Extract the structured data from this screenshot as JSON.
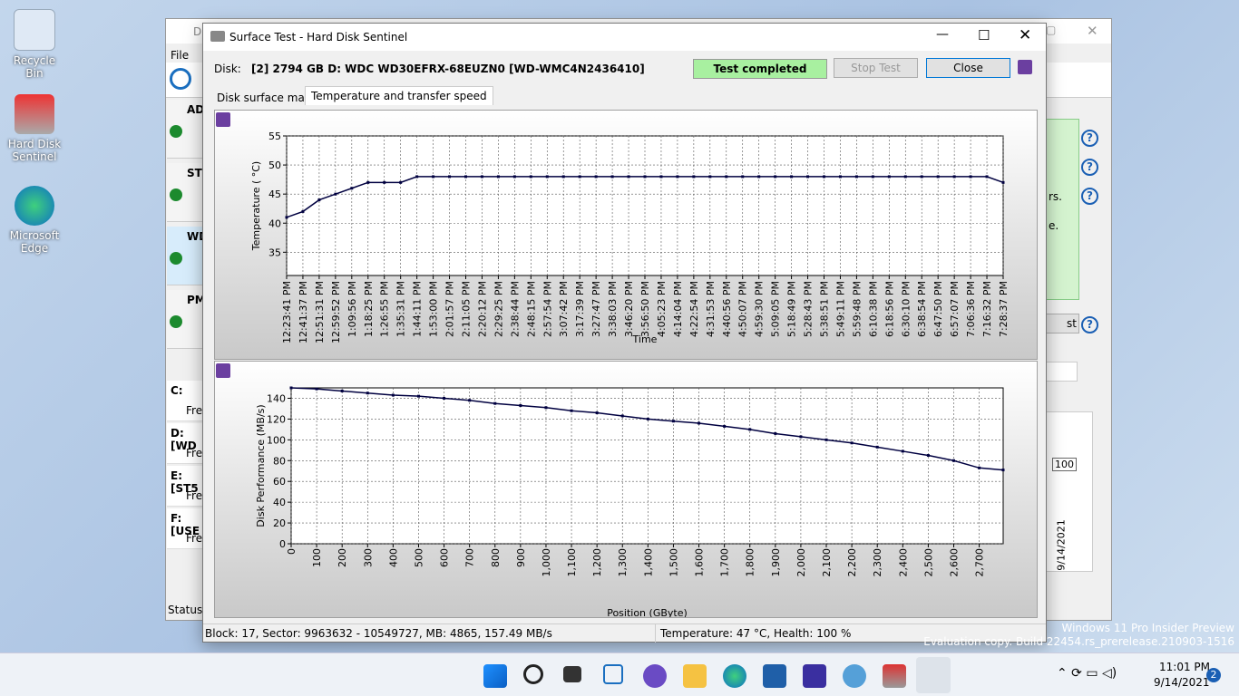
{
  "desktop": {
    "icons": [
      "Recycle Bin",
      "Hard Disk Sentinel",
      "Microsoft Edge"
    ]
  },
  "main_window": {
    "title": "Di",
    "menu": "File",
    "devices": [
      "AD",
      "ST",
      "WD",
      "PM"
    ],
    "volumes": [
      "C:",
      "D: [WD",
      "E: [ST5",
      "F: [USE"
    ],
    "free": "Fre",
    "status": "Status I",
    "right_texts": [
      "rs.",
      "e."
    ],
    "button": "st",
    "help": "?",
    "graph_value": "100",
    "graph_date": "9/14/2021"
  },
  "dialog": {
    "title": "Surface Test - Hard Disk Sentinel",
    "disk_label": "Disk:",
    "disk": "[2] 2794 GB D: WDC WD30EFRX-68EUZN0 [WD-WMC4N2436410]",
    "status": "Test completed",
    "buttons": [
      "Stop Test",
      "Close"
    ],
    "tabs": [
      "Disk surface map",
      "Temperature and transfer speed"
    ],
    "statusbar": [
      "Block: 17, Sector: 9963632 - 10549727, MB: 4865, 157.49 MB/s",
      "Temperature: 47  °C,  Health: 100 %"
    ]
  },
  "chart_data": [
    {
      "type": "line",
      "y_label": "Temperature ( °C)",
      "x_label": "Time",
      "categories": [
        "12:23:41 PM",
        "12:41:37 PM",
        "12:51:31 PM",
        "12:59:52 PM",
        "1:09:56 PM",
        "1:18:25 PM",
        "1:26:55 PM",
        "1:35:31 PM",
        "1:44:11 PM",
        "1:53:00 PM",
        "2:01:57 PM",
        "2:11:05 PM",
        "2:20:12 PM",
        "2:29:25 PM",
        "2:38:44 PM",
        "2:48:15 PM",
        "2:57:54 PM",
        "3:07:42 PM",
        "3:17:39 PM",
        "3:27:47 PM",
        "3:38:03 PM",
        "3:46:20 PM",
        "3:56:50 PM",
        "4:05:23 PM",
        "4:14:04 PM",
        "4:22:54 PM",
        "4:31:53 PM",
        "4:40:56 PM",
        "4:50:07 PM",
        "4:59:30 PM",
        "5:09:05 PM",
        "5:18:49 PM",
        "5:28:43 PM",
        "5:38:51 PM",
        "5:49:11 PM",
        "5:59:48 PM",
        "6:10:38 PM",
        "6:18:56 PM",
        "6:30:10 PM",
        "6:38:54 PM",
        "6:47:50 PM",
        "6:57:07 PM",
        "7:06:36 PM",
        "7:16:32 PM",
        "7:28:37 PM"
      ],
      "values": [
        41,
        42,
        44,
        45,
        46,
        47,
        47,
        47,
        48,
        48,
        48,
        48,
        48,
        48,
        48,
        48,
        48,
        48,
        48,
        48,
        48,
        48,
        48,
        48,
        48,
        48,
        48,
        48,
        48,
        48,
        48,
        48,
        48,
        48,
        48,
        48,
        48,
        48,
        48,
        48,
        48,
        48,
        48,
        48,
        47
      ],
      "color": "#000040",
      "ylim": [
        31,
        55
      ],
      "yticks": [
        35,
        40,
        45,
        50,
        55
      ],
      "grid": true
    },
    {
      "type": "line",
      "y_label": "Disk Performance (MB/s)",
      "x_label": "Position (GByte)",
      "x": [
        0,
        100,
        200,
        300,
        400,
        500,
        600,
        700,
        800,
        900,
        1000,
        1100,
        1200,
        1300,
        1400,
        1500,
        1600,
        1700,
        1800,
        1900,
        2000,
        2100,
        2200,
        2300,
        2400,
        2500,
        2600,
        2700,
        2794
      ],
      "values": [
        150,
        149,
        147,
        145,
        143,
        142,
        140,
        138,
        135,
        133,
        131,
        128,
        126,
        123,
        120,
        118,
        116,
        113,
        110,
        106,
        103,
        100,
        97,
        93,
        89,
        85,
        80,
        73,
        71
      ],
      "color": "#000040",
      "xlim": [
        0,
        2794
      ],
      "xticks": [
        0,
        100,
        200,
        300,
        400,
        500,
        600,
        700,
        800,
        900,
        {
          "value": 1000,
          "label": "1,000"
        },
        {
          "value": 1100,
          "label": "1,100"
        },
        {
          "value": 1200,
          "label": "1,200"
        },
        {
          "value": 1300,
          "label": "1,300"
        },
        {
          "value": 1400,
          "label": "1,400"
        },
        {
          "value": 1500,
          "label": "1,500"
        },
        {
          "value": 1600,
          "label": "1,600"
        },
        {
          "value": 1700,
          "label": "1,700"
        },
        {
          "value": 1800,
          "label": "1,800"
        },
        {
          "value": 1900,
          "label": "1,900"
        },
        {
          "value": 2000,
          "label": "2,000"
        },
        {
          "value": 2100,
          "label": "2,100"
        },
        {
          "value": 2200,
          "label": "2,200"
        },
        {
          "value": 2300,
          "label": "2,300"
        },
        {
          "value": 2400,
          "label": "2,400"
        },
        {
          "value": 2500,
          "label": "2,500"
        },
        {
          "value": 2600,
          "label": "2,600"
        },
        {
          "value": 2700,
          "label": "2,700"
        }
      ],
      "ylim": [
        0,
        150
      ],
      "yticks": [
        0,
        20,
        40,
        60,
        80,
        100,
        120,
        140
      ],
      "grid": true
    }
  ],
  "watermark": [
    "Windows 11 Pro Insider Preview",
    "Evaluation copy. Build 22454.rs_prerelease.210903-1516"
  ],
  "taskbar": {
    "time": "11:01 PM",
    "date": "9/14/2021",
    "badge": "2"
  }
}
